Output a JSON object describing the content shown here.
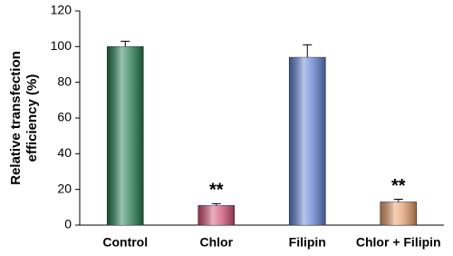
{
  "chart_data": {
    "type": "bar",
    "ylabel": [
      "Relative transfection",
      "efficiency (%)"
    ],
    "categories": [
      "Control",
      "Chlor",
      "Filipin",
      "Chlor + Filipin"
    ],
    "values": [
      100,
      11,
      94,
      13
    ],
    "errors": [
      3,
      1,
      7,
      1.5
    ],
    "colors": [
      "#1f7a4c",
      "#d24f78",
      "#5f7fd0",
      "#e39a68"
    ],
    "annotations": [
      null,
      "**",
      null,
      "**"
    ],
    "ylim": [
      0,
      120
    ],
    "yticks": [
      0,
      20,
      40,
      60,
      80,
      100,
      120
    ],
    "grid": false
  }
}
